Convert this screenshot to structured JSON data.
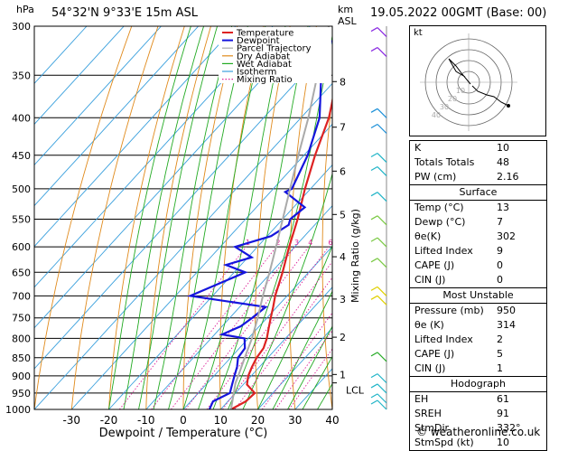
{
  "header": {
    "hpa": "hPa",
    "location": "54°32'N  9°33'E  15m  ASL",
    "km": "km",
    "asl": "ASL",
    "datetime": "19.05.2022  00GMT  (Base: 00)"
  },
  "footer": "© weatheronline.co.uk",
  "chart_data": {
    "type": "line",
    "xlabel": "Dewpoint / Temperature (°C)",
    "ylabel_right": "Mixing Ratio (g/kg)",
    "xlim": [
      -40,
      40
    ],
    "ylim": [
      1000,
      300
    ],
    "pressure_ticks": [
      300,
      350,
      400,
      450,
      500,
      550,
      600,
      650,
      700,
      750,
      800,
      850,
      900,
      950,
      1000
    ],
    "temp_ticks": [
      -30,
      -20,
      -10,
      0,
      10,
      20,
      30,
      40
    ],
    "km_ticks": [
      {
        "label": "8",
        "p": 357
      },
      {
        "label": "7",
        "p": 412
      },
      {
        "label": "6",
        "p": 473
      },
      {
        "label": "5",
        "p": 542
      },
      {
        "label": "4",
        "p": 619
      },
      {
        "label": "3",
        "p": 707
      },
      {
        "label": "2",
        "p": 797
      },
      {
        "label": "1",
        "p": 896
      }
    ],
    "lcl": {
      "label": "LCL",
      "p": 920
    },
    "mixing_ratio_labels": [
      "1",
      "2",
      "3",
      "4",
      "6",
      "8",
      "10",
      "16",
      "20",
      "25"
    ],
    "legend": [
      "Temperature",
      "Dewpoint",
      "Parcel Trajectory",
      "Dry Adiabat",
      "Wet Adiabat",
      "Isotherm",
      "Mixing Ratio"
    ],
    "series": [
      {
        "name": "Temperature",
        "color": "#dd2222",
        "points": [
          [
            1000,
            12.8
          ],
          [
            975,
            14.8
          ],
          [
            950,
            15.2
          ],
          [
            925,
            11
          ],
          [
            900,
            9.2
          ],
          [
            875,
            8
          ],
          [
            850,
            7
          ],
          [
            825,
            6.5
          ],
          [
            800,
            5
          ],
          [
            775,
            3
          ],
          [
            750,
            1
          ],
          [
            725,
            -1
          ],
          [
            700,
            -3.2
          ],
          [
            650,
            -7
          ],
          [
            600,
            -11.5
          ],
          [
            550,
            -16
          ],
          [
            500,
            -21.5
          ],
          [
            450,
            -27
          ],
          [
            400,
            -32.5
          ],
          [
            350,
            -40.5
          ],
          [
            300,
            -49
          ]
        ]
      },
      {
        "name": "Dewpoint",
        "color": "#1515dd",
        "points": [
          [
            1000,
            7
          ],
          [
            975,
            6
          ],
          [
            950,
            8.5
          ],
          [
            925,
            7
          ],
          [
            900,
            5.5
          ],
          [
            875,
            4
          ],
          [
            850,
            2
          ],
          [
            825,
            1.5
          ],
          [
            800,
            -1
          ],
          [
            790,
            -8
          ],
          [
            770,
            -5
          ],
          [
            750,
            -4
          ],
          [
            725,
            -3
          ],
          [
            700,
            -26
          ],
          [
            650,
            -17
          ],
          [
            635,
            -24
          ],
          [
            620,
            -19
          ],
          [
            600,
            -26
          ],
          [
            580,
            -19
          ],
          [
            560,
            -17
          ],
          [
            550,
            -18
          ],
          [
            530,
            -17
          ],
          [
            505,
            -26
          ],
          [
            500,
            -25
          ],
          [
            450,
            -29
          ],
          [
            400,
            -35
          ],
          [
            350,
            -45
          ],
          [
            320,
            -51
          ],
          [
            310,
            -50
          ],
          [
            300,
            -51.5
          ]
        ]
      },
      {
        "name": "Parcel Trajectory",
        "color": "#aaaaaa",
        "points": [
          [
            1000,
            12.8
          ],
          [
            920,
            7.5
          ],
          [
            900,
            6.5
          ],
          [
            850,
            3.8
          ],
          [
            800,
            1
          ],
          [
            750,
            -2.5
          ],
          [
            700,
            -6.5
          ],
          [
            650,
            -10.5
          ],
          [
            600,
            -15
          ],
          [
            550,
            -20
          ],
          [
            500,
            -25.5
          ],
          [
            450,
            -31.5
          ],
          [
            400,
            -38
          ],
          [
            350,
            -46
          ],
          [
            300,
            -55
          ]
        ]
      }
    ]
  },
  "hodograph": {
    "label": "kt",
    "ring_labels": [
      "10",
      "20",
      "30",
      "40"
    ]
  },
  "indices": [
    {
      "key": "K",
      "value": "10"
    },
    {
      "key": "Totals Totals",
      "value": "48"
    },
    {
      "key": "PW (cm)",
      "value": "2.16"
    }
  ],
  "surface": {
    "title": "Surface",
    "rows": [
      {
        "key": "Temp (°C)",
        "value": "13"
      },
      {
        "key": "Dewp (°C)",
        "value": "7"
      },
      {
        "key": "θe(K)",
        "value": "302"
      },
      {
        "key": "Lifted Index",
        "value": "9"
      },
      {
        "key": "CAPE (J)",
        "value": "0"
      },
      {
        "key": "CIN (J)",
        "value": "0"
      }
    ]
  },
  "most_unstable": {
    "title": "Most Unstable",
    "rows": [
      {
        "key": "Pressure (mb)",
        "value": "950"
      },
      {
        "key": "θe (K)",
        "value": "314"
      },
      {
        "key": "Lifted Index",
        "value": "2"
      },
      {
        "key": "CAPE (J)",
        "value": "5"
      },
      {
        "key": "CIN (J)",
        "value": "1"
      }
    ]
  },
  "hodograph_table": {
    "title": "Hodograph",
    "rows": [
      {
        "key": "EH",
        "value": "61"
      },
      {
        "key": "SREH",
        "value": "91"
      },
      {
        "key": "StmDir",
        "value": "332°"
      },
      {
        "key": "StmSpd (kt)",
        "value": "10"
      }
    ]
  }
}
